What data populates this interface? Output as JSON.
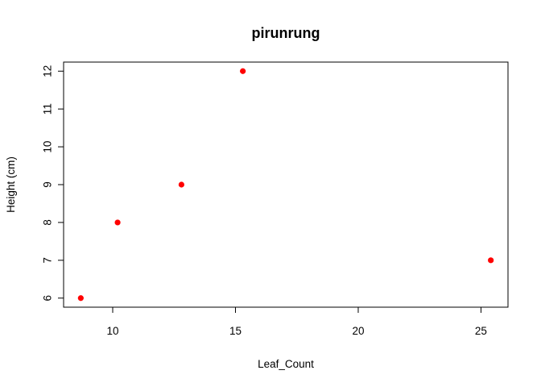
{
  "chart_data": {
    "type": "scatter",
    "title": "pirunrung",
    "xlabel": "Leaf_Count",
    "ylabel": "Height (cm)",
    "xlim": [
      8.0,
      26.1
    ],
    "ylim": [
      5.76,
      12.24
    ],
    "x_ticks": [
      10,
      15,
      20,
      25
    ],
    "y_ticks": [
      6,
      7,
      8,
      9,
      10,
      11,
      12
    ],
    "grid": false,
    "legend": "none",
    "point_color": "#ff0000",
    "points": [
      {
        "x": 8.7,
        "y": 6
      },
      {
        "x": 10.2,
        "y": 8
      },
      {
        "x": 12.8,
        "y": 9
      },
      {
        "x": 15.3,
        "y": 12
      },
      {
        "x": 25.4,
        "y": 7
      }
    ]
  }
}
